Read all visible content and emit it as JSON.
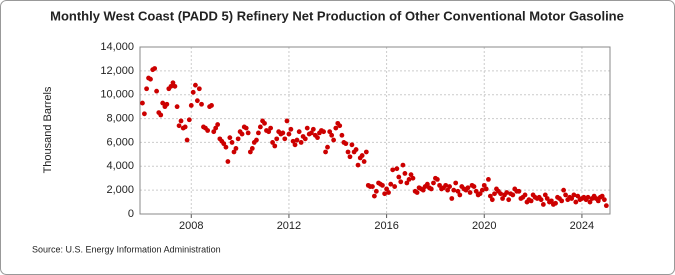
{
  "chart_data": {
    "type": "scatter",
    "title": "Monthly West Coast (PADD 5) Refinery Net Production of Other Conventional Motor Gasoline",
    "y_label": "Thousand Barrels",
    "source": "Source: U.S. Energy Information Administration",
    "color": "#cc0000",
    "grid": true,
    "xlim": [
      2005.9,
      2025.15
    ],
    "xticks": [
      2008,
      2012,
      2016,
      2020,
      2024
    ],
    "ylim": [
      0,
      14000
    ],
    "yticks": [
      0,
      {
        "value": 2000,
        "label": "2,000"
      },
      {
        "value": 4000,
        "label": "4,000"
      },
      {
        "value": 6000,
        "label": "6,000"
      },
      {
        "value": 8000,
        "label": "8,000"
      },
      {
        "value": 10000,
        "label": "10,000"
      },
      {
        "value": 12000,
        "label": "12,000"
      },
      {
        "value": 14000,
        "label": "14,000"
      }
    ],
    "x": [
      2006,
      2006.08,
      2006.17,
      2006.25,
      2006.33,
      2006.42,
      2006.5,
      2006.58,
      2006.67,
      2006.75,
      2006.83,
      2006.92,
      2007,
      2007.08,
      2007.17,
      2007.25,
      2007.33,
      2007.42,
      2007.5,
      2007.58,
      2007.67,
      2007.75,
      2007.83,
      2007.92,
      2008,
      2008.08,
      2008.17,
      2008.25,
      2008.33,
      2008.42,
      2008.5,
      2008.58,
      2008.67,
      2008.75,
      2008.83,
      2008.92,
      2009,
      2009.08,
      2009.17,
      2009.25,
      2009.33,
      2009.42,
      2009.5,
      2009.58,
      2009.67,
      2009.75,
      2009.83,
      2009.92,
      2010,
      2010.08,
      2010.17,
      2010.25,
      2010.33,
      2010.42,
      2010.5,
      2010.58,
      2010.67,
      2010.75,
      2010.83,
      2010.92,
      2011,
      2011.08,
      2011.17,
      2011.25,
      2011.33,
      2011.42,
      2011.5,
      2011.58,
      2011.67,
      2011.75,
      2011.83,
      2011.92,
      2012,
      2012.08,
      2012.17,
      2012.25,
      2012.33,
      2012.42,
      2012.5,
      2012.58,
      2012.67,
      2012.75,
      2012.83,
      2012.92,
      2013,
      2013.08,
      2013.17,
      2013.25,
      2013.33,
      2013.42,
      2013.5,
      2013.58,
      2013.67,
      2013.75,
      2013.83,
      2013.92,
      2014,
      2014.08,
      2014.17,
      2014.25,
      2014.33,
      2014.42,
      2014.5,
      2014.58,
      2014.67,
      2014.75,
      2014.83,
      2014.92,
      2015,
      2015.08,
      2015.17,
      2015.25,
      2015.33,
      2015.42,
      2015.5,
      2015.58,
      2015.67,
      2015.75,
      2015.83,
      2015.92,
      2016,
      2016.08,
      2016.17,
      2016.25,
      2016.33,
      2016.42,
      2016.5,
      2016.58,
      2016.67,
      2016.75,
      2016.83,
      2016.92,
      2017,
      2017.08,
      2017.17,
      2017.25,
      2017.33,
      2017.42,
      2017.5,
      2017.58,
      2017.67,
      2017.75,
      2017.83,
      2017.92,
      2018,
      2018.08,
      2018.17,
      2018.25,
      2018.33,
      2018.42,
      2018.5,
      2018.58,
      2018.67,
      2018.75,
      2018.83,
      2018.92,
      2019,
      2019.08,
      2019.17,
      2019.25,
      2019.33,
      2019.42,
      2019.5,
      2019.58,
      2019.67,
      2019.75,
      2019.83,
      2019.92,
      2020,
      2020.08,
      2020.17,
      2020.25,
      2020.33,
      2020.42,
      2020.5,
      2020.58,
      2020.67,
      2020.75,
      2020.83,
      2020.92,
      2021,
      2021.08,
      2021.17,
      2021.25,
      2021.33,
      2021.42,
      2021.5,
      2021.58,
      2021.67,
      2021.75,
      2021.83,
      2021.92,
      2022,
      2022.08,
      2022.17,
      2022.25,
      2022.33,
      2022.42,
      2022.5,
      2022.58,
      2022.67,
      2022.75,
      2022.83,
      2022.92,
      2023,
      2023.08,
      2023.17,
      2023.25,
      2023.33,
      2023.42,
      2023.5,
      2023.58,
      2023.67,
      2023.75,
      2023.83,
      2023.92,
      2024,
      2024.08,
      2024.17,
      2024.25,
      2024.33,
      2024.42,
      2024.5,
      2024.58,
      2024.67,
      2024.75,
      2024.83,
      2024.92,
      2025
    ],
    "values": [
      9300,
      8400,
      10500,
      11400,
      11300,
      12100,
      12200,
      10300,
      8500,
      8300,
      9300,
      9000,
      9200,
      10500,
      10700,
      11000,
      10700,
      9000,
      7400,
      7800,
      7200,
      7300,
      6200,
      7900,
      9100,
      10200,
      10800,
      9500,
      10500,
      9200,
      7300,
      7200,
      7000,
      9000,
      9100,
      6900,
      7200,
      7500,
      6300,
      6100,
      5900,
      5600,
      4400,
      6400,
      6000,
      5200,
      5500,
      6300,
      6900,
      6700,
      7300,
      7200,
      6800,
      5200,
      5500,
      6000,
      6200,
      6800,
      7300,
      7800,
      7600,
      7000,
      6900,
      7200,
      6000,
      5700,
      6300,
      6900,
      6700,
      6800,
      6300,
      7800,
      6700,
      7100,
      6100,
      5800,
      6200,
      6900,
      6000,
      6500,
      6300,
      7200,
      6700,
      6800,
      7100,
      6600,
      6400,
      6800,
      7000,
      6900,
      5200,
      5600,
      6900,
      6600,
      6200,
      7200,
      7600,
      7400,
      6600,
      6000,
      5900,
      5200,
      4800,
      5800,
      5200,
      5400,
      4100,
      4700,
      4900,
      4400,
      5200,
      2400,
      2300,
      2300,
      1500,
      1900,
      2600,
      2500,
      2400,
      1700,
      2100,
      1800,
      2500,
      3700,
      2300,
      3800,
      3100,
      2700,
      4100,
      3400,
      2600,
      2900,
      3300,
      3000,
      1900,
      1800,
      2200,
      2100,
      2000,
      2300,
      2500,
      2200,
      2100,
      2600,
      3000,
      2900,
      2400,
      2100,
      2200,
      2400,
      2000,
      2300,
      1300,
      2000,
      2600,
      1900,
      1600,
      2300,
      2100,
      2000,
      2200,
      1800,
      2400,
      2300,
      1900,
      1600,
      1700,
      2000,
      2400,
      2100,
      2900,
      1500,
      1200,
      1700,
      2100,
      1900,
      1700,
      1300,
      1600,
      1800,
      1200,
      1700,
      1600,
      2100,
      1900,
      1900,
      1300,
      1400,
      1600,
      1000,
      1200,
      1100,
      1600,
      1400,
      1300,
      1400,
      1200,
      800,
      1600,
      1300,
      1000,
      1100,
      800,
      900,
      1400,
      1300,
      1100,
      2000,
      1600,
      1200,
      1400,
      1300,
      1600,
      1000,
      1500,
      1200,
      1300,
      1400,
      1200,
      1400,
      1000,
      1300,
      1500,
      1300,
      1100,
      1400,
      1500,
      1200,
      700
    ]
  }
}
